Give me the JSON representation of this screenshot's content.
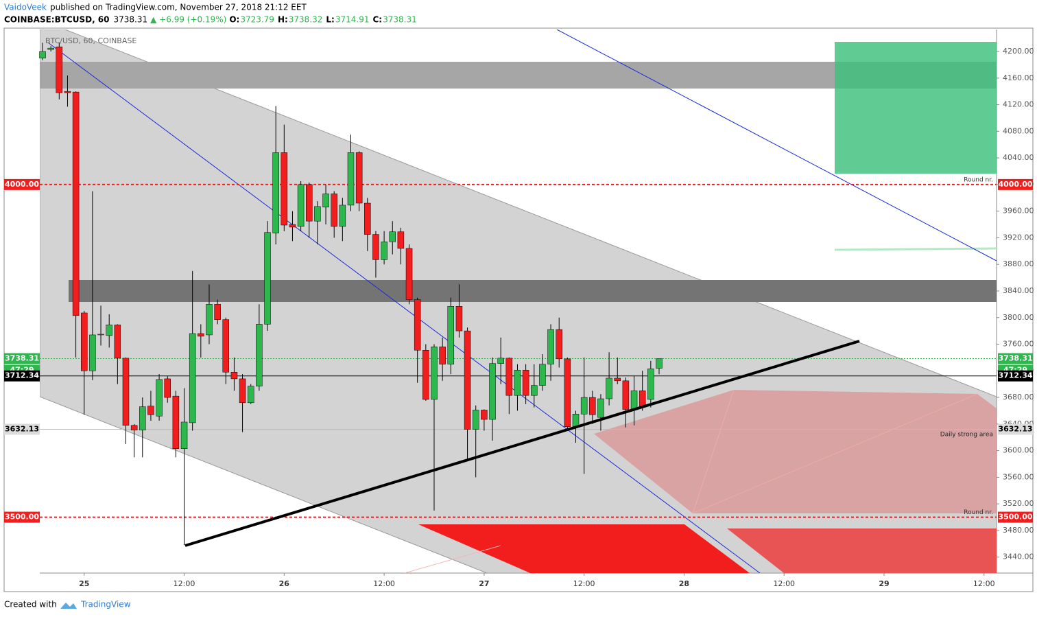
{
  "header": {
    "author": "VaidoVeek",
    "published": "published on TradingView.com, November 27, 2018 21:12 EET"
  },
  "chart_data": {
    "type": "candlestick",
    "symbol": "COINBASE:BTCUSD, 60",
    "last": "3738.31",
    "change": "▲ +6.99 (+0.19%)",
    "ohlc_text": [
      {
        "label": "O:",
        "value": "3723.79"
      },
      {
        "label": "H:",
        "value": "3738.32"
      },
      {
        "label": "L:",
        "value": "3714.91"
      },
      {
        "label": "C:",
        "value": "3738.31"
      }
    ],
    "title": "BTC/USD, 60, COINBASE",
    "up_color": "#2db84d",
    "down_color": "#f21e1e",
    "open": [
      4190,
      4203,
      4207,
      4140,
      4139,
      3807,
      3720,
      3774,
      3773,
      3789,
      3739,
      3638,
      3631,
      3667,
      3652,
      3708,
      3682,
      3603,
      3642,
      3776,
      3774,
      3820,
      3797,
      3718,
      3708,
      3672,
      3697,
      3790,
      3927,
      4048,
      3940,
      3937,
      4000,
      3945,
      3966,
      3986,
      3937,
      3969,
      4048,
      3972,
      3925,
      3887,
      3914,
      3929,
      3904,
      3827,
      3751,
      3677,
      3756,
      3730,
      3817,
      3780,
      3632,
      3661,
      3647,
      3731,
      3739,
      3683,
      3721,
      3683,
      3698,
      3730,
      3782,
      3738,
      3636,
      3655,
      3680,
      3650,
      3678,
      3709,
      3705,
      3662,
      3690,
      3677,
      3723.79
    ],
    "high": [
      4213,
      4208,
      4213,
      4164,
      4140,
      3810,
      3990,
      3818,
      3805,
      3790,
      3740,
      3640,
      3680,
      3690,
      3715,
      3712,
      3690,
      3694,
      3870,
      3790,
      3850,
      3827,
      3800,
      3740,
      3715,
      3700,
      3820,
      3945,
      4118,
      4090,
      3960,
      4005,
      4003,
      3975,
      4000,
      3990,
      3980,
      4075,
      4050,
      3980,
      3930,
      3930,
      3945,
      3935,
      3910,
      3830,
      3760,
      3760,
      3770,
      3830,
      3850,
      3785,
      3668,
      3662,
      3740,
      3770,
      3740,
      3730,
      3730,
      3730,
      3745,
      3790,
      3800,
      3740,
      3660,
      3740,
      3690,
      3685,
      3748,
      3740,
      3710,
      3712,
      3720,
      3735,
      3738.32
    ],
    "low": [
      4187,
      4200,
      4128,
      4117,
      3740,
      3654,
      3706,
      3758,
      3755,
      3700,
      3610,
      3590,
      3590,
      3645,
      3645,
      3672,
      3590,
      3458,
      3630,
      3740,
      3760,
      3790,
      3700,
      3690,
      3628,
      3670,
      3690,
      3780,
      3910,
      3930,
      3915,
      3930,
      3920,
      3910,
      3940,
      3920,
      3915,
      3960,
      3960,
      3900,
      3860,
      3880,
      3895,
      3880,
      3820,
      3702,
      3675,
      3510,
      3705,
      3715,
      3770,
      3585,
      3560,
      3630,
      3615,
      3700,
      3655,
      3660,
      3670,
      3665,
      3690,
      3705,
      3725,
      3630,
      3612,
      3565,
      3640,
      3630,
      3668,
      3700,
      3635,
      3638,
      3660,
      3665,
      3714.91
    ],
    "close": [
      4200,
      4205,
      4138,
      4138,
      3803,
      3720,
      3774,
      3775,
      3789,
      3739,
      3638,
      3631,
      3666,
      3654,
      3707,
      3680,
      3603,
      3643,
      3776,
      3772,
      3820,
      3797,
      3718,
      3708,
      3672,
      3697,
      3790,
      3928,
      4048,
      3939,
      3936,
      4000,
      3945,
      3967,
      3986,
      3937,
      3969,
      4048,
      3972,
      3925,
      3887,
      3914,
      3929,
      3904,
      3827,
      3751,
      3677,
      3756,
      3730,
      3817,
      3780,
      3632,
      3661,
      3647,
      3731,
      3739,
      3683,
      3721,
      3683,
      3698,
      3730,
      3782,
      3738,
      3636,
      3655,
      3680,
      3654,
      3678,
      3709,
      3705,
      3662,
      3690,
      3667,
      3723,
      3738.31
    ],
    "xlim": [
      -0.33,
      114.5
    ],
    "xticks": [
      {
        "value": 5,
        "label": "25"
      },
      {
        "value": 17,
        "label": "12:00"
      },
      {
        "value": 29,
        "label": "26"
      },
      {
        "value": 41,
        "label": "12:00"
      },
      {
        "value": 53,
        "label": "27"
      },
      {
        "value": 65,
        "label": "12:00"
      },
      {
        "value": 77,
        "label": "28"
      },
      {
        "value": 89,
        "label": "12:00"
      },
      {
        "value": 101,
        "label": "29"
      },
      {
        "value": 113,
        "label": "12:00"
      }
    ],
    "ylim": [
      3416,
      4233
    ],
    "yticks": [
      {
        "value": 3440,
        "label": "3440.00"
      },
      {
        "value": 3480,
        "label": "3480.00"
      },
      {
        "value": 3520,
        "label": "3520.00"
      },
      {
        "value": 3560,
        "label": "3560.00"
      },
      {
        "value": 3600,
        "label": "3600.00"
      },
      {
        "value": 3640,
        "label": "3640.00"
      },
      {
        "value": 3680,
        "label": "3680.00"
      },
      {
        "value": 3720,
        "label": "3720.00"
      },
      {
        "value": 3760,
        "label": "3760.00"
      },
      {
        "value": 3800,
        "label": "3800.00"
      },
      {
        "value": 3840,
        "label": "3840.00"
      },
      {
        "value": 3880,
        "label": "3880.00"
      },
      {
        "value": 3920,
        "label": "3920.00"
      },
      {
        "value": 3960,
        "label": "3960.00"
      },
      {
        "value": 4000,
        "label": "4000.00"
      },
      {
        "value": 4040,
        "label": "4040.00"
      },
      {
        "value": 4080,
        "label": "4080.00"
      },
      {
        "value": 4120,
        "label": "4120.00"
      },
      {
        "value": 4160,
        "label": "4160.00"
      },
      {
        "value": 4200,
        "label": "4200.00"
      }
    ],
    "levels": [
      {
        "value": 4000,
        "label": "4000.00",
        "note": "Round nr.",
        "color": "#f21e1e"
      },
      {
        "value": 3500,
        "label": "3500.00",
        "note": "Round nr.",
        "color": "#f21e1e"
      }
    ],
    "price_lines": [
      {
        "value": 3738.31,
        "color": "#2db84d",
        "countdown": "47:29"
      },
      {
        "value": 3712.34,
        "color": "#000000"
      },
      {
        "value": 3632.13,
        "color": "#bbbbbb"
      }
    ],
    "annotation": "Daily strong area"
  },
  "footer": {
    "created": "Created with",
    "brand": "TradingView"
  }
}
